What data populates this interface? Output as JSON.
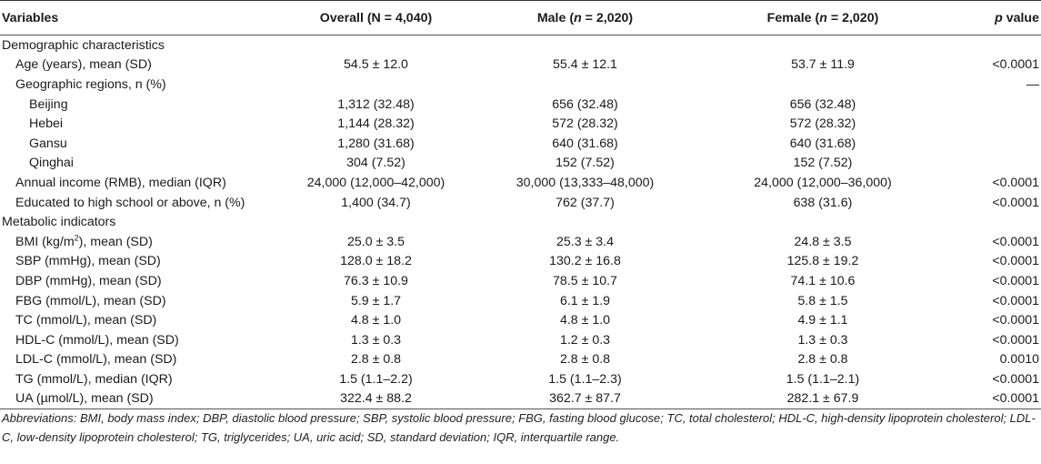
{
  "header": {
    "variables": "Variables",
    "overall": "Overall (N = 4,040)",
    "male_pre": "Male (",
    "male_n": "n",
    "male_post": " = 2,020)",
    "female_pre": "Female (",
    "female_n": "n",
    "female_post": " = 2,020)",
    "p_italic": "p",
    "p_rest": " value"
  },
  "rows": [
    {
      "label": "Demographic characteristics",
      "indent": 0,
      "overall": "",
      "male": "",
      "female": "",
      "p": ""
    },
    {
      "label": "Age (years), mean (SD)",
      "indent": 1,
      "overall": "54.5 ± 12.0",
      "male": "55.4 ± 12.1",
      "female": "53.7 ± 11.9",
      "p": "<0.0001"
    },
    {
      "label": "Geographic regions, n (%)",
      "indent": 1,
      "overall": "",
      "male": "",
      "female": "",
      "p": "—"
    },
    {
      "label": "Beijing",
      "indent": 2,
      "overall": "1,312 (32.48)",
      "male": "656 (32.48)",
      "female": "656 (32.48)",
      "p": ""
    },
    {
      "label": "Hebei",
      "indent": 2,
      "overall": "1,144 (28.32)",
      "male": "572 (28.32)",
      "female": "572 (28.32)",
      "p": ""
    },
    {
      "label": "Gansu",
      "indent": 2,
      "overall": "1,280 (31.68)",
      "male": "640 (31.68)",
      "female": "640 (31.68)",
      "p": ""
    },
    {
      "label": "Qinghai",
      "indent": 2,
      "overall": "304 (7.52)",
      "male": "152 (7.52)",
      "female": "152 (7.52)",
      "p": ""
    },
    {
      "label": "Annual income (RMB), median (IQR)",
      "indent": 1,
      "overall": "24,000 (12,000–42,000)",
      "male": "30,000 (13,333–48,000)",
      "female": "24,000 (12,000–36,000)",
      "p": "<0.0001"
    },
    {
      "label": "Educated to high school or above, n (%)",
      "indent": 1,
      "overall": "1,400 (34.7)",
      "male": "762 (37.7)",
      "female": "638 (31.6)",
      "p": "<0.0001"
    },
    {
      "label": "Metabolic indicators",
      "indent": 0,
      "overall": "",
      "male": "",
      "female": "",
      "p": ""
    },
    {
      "label": "BMI (kg/m",
      "sup": "2",
      "label_after": "), mean (SD)",
      "indent": 1,
      "overall": "25.0 ± 3.5",
      "male": "25.3 ± 3.4",
      "female": "24.8 ± 3.5",
      "p": "<0.0001"
    },
    {
      "label": "SBP (mmHg), mean (SD)",
      "indent": 1,
      "overall": "128.0 ± 18.2",
      "male": "130.2 ± 16.8",
      "female": "125.8 ± 19.2",
      "p": "<0.0001"
    },
    {
      "label": "DBP (mmHg), mean (SD)",
      "indent": 1,
      "overall": "76.3 ± 10.9",
      "male": "78.5 ± 10.7",
      "female": "74.1 ± 10.6",
      "p": "<0.0001"
    },
    {
      "label": "FBG (mmol/L), mean (SD)",
      "indent": 1,
      "overall": "5.9 ± 1.7",
      "male": "6.1 ± 1.9",
      "female": "5.8 ± 1.5",
      "p": "<0.0001"
    },
    {
      "label": "TC (mmol/L), mean (SD)",
      "indent": 1,
      "overall": "4.8 ± 1.0",
      "male": "4.8 ± 1.0",
      "female": "4.9 ± 1.1",
      "p": "<0.0001"
    },
    {
      "label": "HDL-C (mmol/L), mean (SD)",
      "indent": 1,
      "overall": "1.3 ± 0.3",
      "male": "1.2 ± 0.3",
      "female": "1.3 ± 0.3",
      "p": "<0.0001"
    },
    {
      "label": "LDL-C (mmol/L), mean (SD)",
      "indent": 1,
      "overall": "2.8 ± 0.8",
      "male": "2.8 ± 0.8",
      "female": "2.8 ± 0.8",
      "p": "0.0010"
    },
    {
      "label": "TG (mmol/L), median (IQR)",
      "indent": 1,
      "overall": "1.5 (1.1–2.2)",
      "male": "1.5 (1.1–2.3)",
      "female": "1.5 (1.1–2.1)",
      "p": "<0.0001"
    },
    {
      "label": "UA (µmol/L), mean (SD)",
      "indent": 1,
      "overall": "322.4 ± 88.2",
      "male": "362.7 ± 87.7",
      "female": "282.1 ± 67.9",
      "p": "<0.0001"
    }
  ],
  "footnote": "Abbreviations: BMI, body mass index; DBP, diastolic blood pressure; SBP, systolic blood pressure; FBG, fasting blood glucose; TC, total cholesterol; HDL-C, high-density lipoprotein cholesterol; LDL-C, low-density lipoprotein cholesterol; TG, triglycerides; UA, uric acid; SD, standard deviation; IQR, interquartile range."
}
